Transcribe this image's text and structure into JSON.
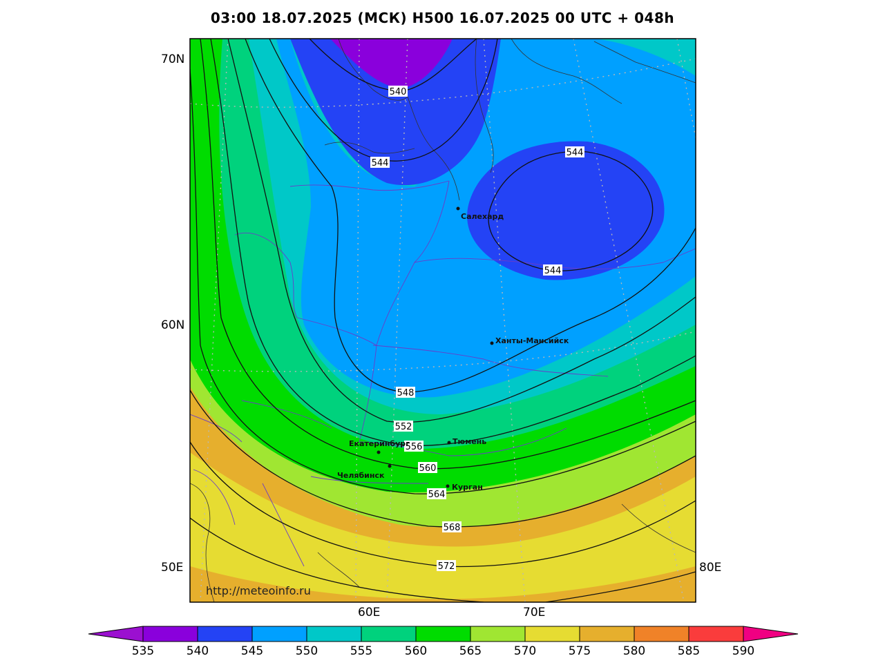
{
  "title": "03:00 18.07.2025 (МСК) H500  16.07.2025 00 UTC + 048h",
  "credit": "http://meteoinfo.ru",
  "axis_labels": {
    "lat_70": "70N",
    "lat_60": "60N",
    "lon_50": "50E",
    "lon_60": "60E",
    "lon_70": "70E",
    "lon_80": "80E"
  },
  "contour_labels": {
    "c540": "540",
    "c544a": "544",
    "c544b": "544",
    "c544c": "544",
    "c548": "548",
    "c552": "552",
    "c556": "556",
    "c560": "560",
    "c564": "564",
    "c568": "568",
    "c572": "572"
  },
  "cities": {
    "salekhard": "Салехард",
    "khanty": "Ханты-Мансийск",
    "ekb": "Екатеринбург",
    "tyumen": "Тюмень",
    "chelyabinsk": "Челябинск",
    "kurgan": "Курган"
  },
  "colorbar": {
    "ticks": [
      "535",
      "540",
      "545",
      "550",
      "555",
      "560",
      "565",
      "570",
      "575",
      "580",
      "585",
      "590"
    ],
    "colors": [
      "#9b10d0",
      "#8a00dc",
      "#2443f5",
      "#00a0ff",
      "#00c8c8",
      "#00d27d",
      "#00dc00",
      "#a0e632",
      "#e6dc32",
      "#e6af2d",
      "#f08228",
      "#fa3c3c",
      "#f00082"
    ]
  }
}
